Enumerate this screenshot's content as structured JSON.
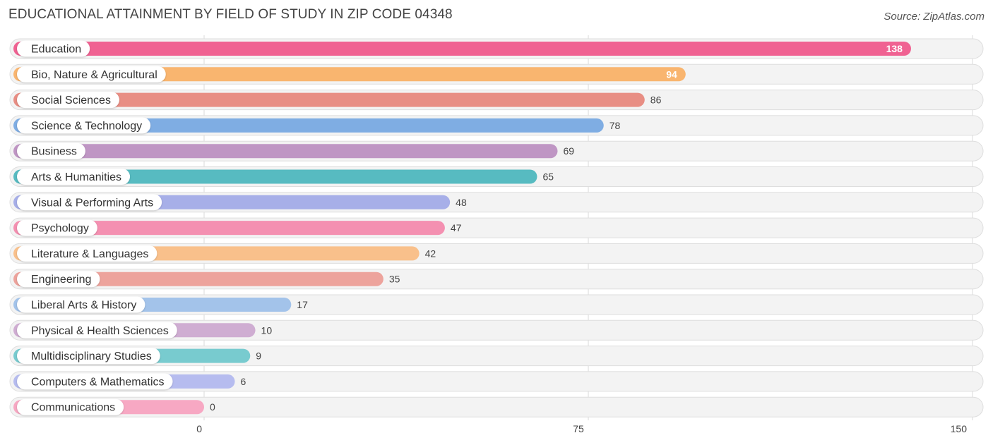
{
  "header": {
    "title": "EDUCATIONAL ATTAINMENT BY FIELD OF STUDY IN ZIP CODE 04348",
    "source_prefix": "Source: ",
    "source_brand": "ZipAtlas.com"
  },
  "chart_data": {
    "type": "bar",
    "orientation": "horizontal",
    "title": "EDUCATIONAL ATTAINMENT BY FIELD OF STUDY IN ZIP CODE 04348",
    "xlabel": "",
    "ylabel": "",
    "xlim": [
      0,
      150
    ],
    "ticks": [
      0,
      75,
      150
    ],
    "tick_labels": [
      "0",
      "75",
      "150"
    ],
    "categories": [
      "Education",
      "Bio, Nature & Agricultural",
      "Social Sciences",
      "Science & Technology",
      "Business",
      "Arts & Humanities",
      "Visual & Performing Arts",
      "Psychology",
      "Literature & Languages",
      "Engineering",
      "Liberal Arts & History",
      "Physical & Health Sciences",
      "Multidisciplinary Studies",
      "Computers & Mathematics",
      "Communications"
    ],
    "values": [
      138,
      94,
      86,
      78,
      69,
      65,
      48,
      47,
      42,
      35,
      17,
      10,
      9,
      6,
      0
    ],
    "colors": [
      "#f06292",
      "#f9b56f",
      "#e88e84",
      "#7fade3",
      "#bf96c4",
      "#57bbc1",
      "#a7afe8",
      "#f490b1",
      "#f9c08b",
      "#eda39c",
      "#a3c3ea",
      "#cfadd2",
      "#78cbcf",
      "#b6bcef",
      "#f7a8c3"
    ]
  }
}
